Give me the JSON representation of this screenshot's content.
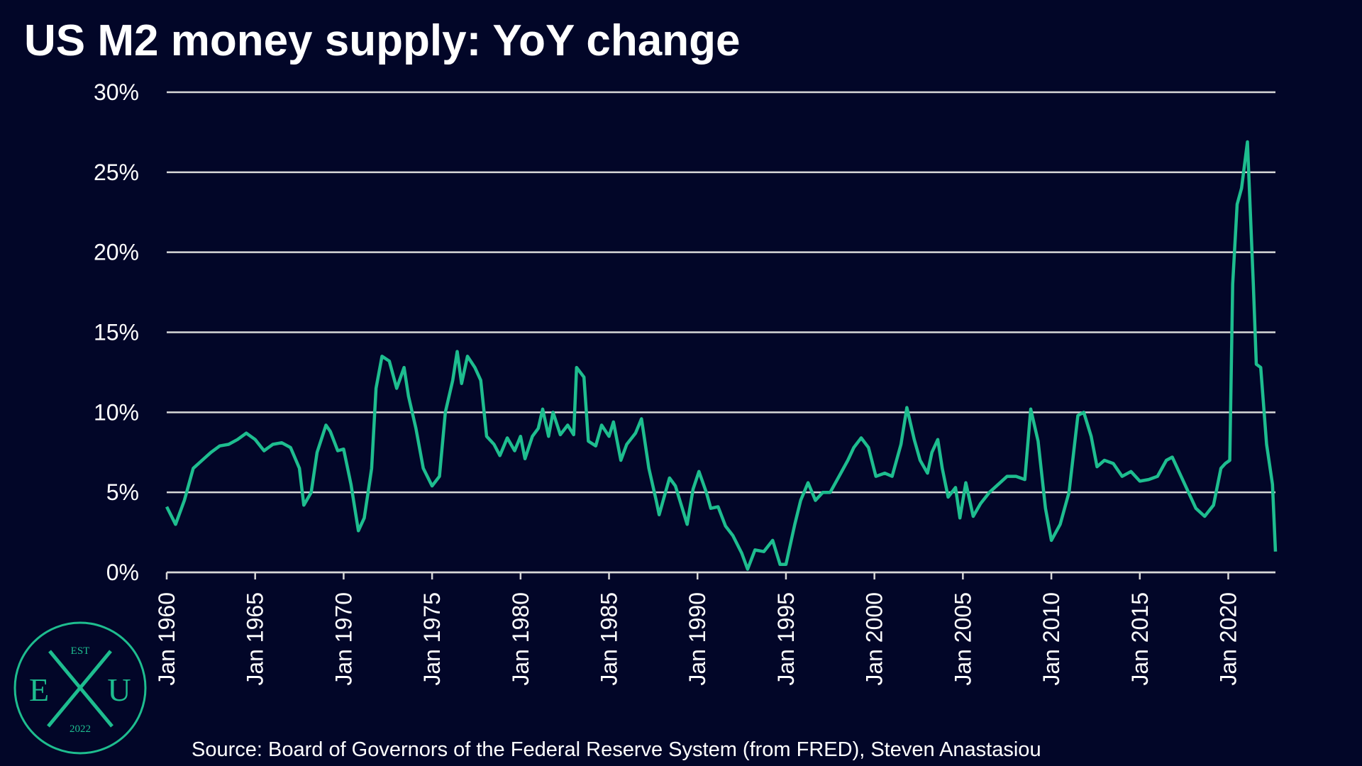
{
  "chart_data": {
    "type": "line",
    "title": "US M2 money supply: YoY change",
    "source": "Source: Board of Governors of the Federal Reserve System (from FRED), Steven Anastasiou",
    "logo": {
      "top": "EST",
      "left": "E",
      "right": "U",
      "bottom": "2022"
    },
    "x": [
      "1960-01",
      "1960-07",
      "1961-01",
      "1961-07",
      "1962-01",
      "1962-07",
      "1963-01",
      "1963-07",
      "1964-01",
      "1964-07",
      "1965-01",
      "1965-07",
      "1966-01",
      "1966-07",
      "1967-01",
      "1967-07",
      "1967-10",
      "1968-03",
      "1968-07",
      "1969-01",
      "1969-04",
      "1969-09",
      "1970-01",
      "1970-06",
      "1970-11",
      "1971-03",
      "1971-08",
      "1971-11",
      "1972-03",
      "1972-08",
      "1973-01",
      "1973-06",
      "1973-09",
      "1974-02",
      "1974-07",
      "1975-01",
      "1975-06",
      "1975-10",
      "1976-03",
      "1976-06",
      "1976-09",
      "1977-01",
      "1977-06",
      "1977-10",
      "1978-02",
      "1978-07",
      "1978-11",
      "1979-04",
      "1979-09",
      "1980-01",
      "1980-04",
      "1980-09",
      "1981-01",
      "1981-04",
      "1981-08",
      "1981-11",
      "1982-04",
      "1982-09",
      "1983-01",
      "1983-03",
      "1983-08",
      "1983-11",
      "1984-04",
      "1984-08",
      "1985-01",
      "1985-04",
      "1985-09",
      "1986-01",
      "1986-07",
      "1986-11",
      "1987-04",
      "1987-09",
      "1987-11",
      "1988-06",
      "1988-10",
      "1989-02",
      "1989-06",
      "1989-10",
      "1990-02",
      "1990-07",
      "1990-10",
      "1991-03",
      "1991-08",
      "1992-01",
      "1992-07",
      "1992-11",
      "1993-04",
      "1993-10",
      "1994-04",
      "1994-09",
      "1995-01",
      "1995-07",
      "1995-11",
      "1996-04",
      "1996-09",
      "1997-02",
      "1997-07",
      "1998-01",
      "1998-07",
      "1998-11",
      "1999-04",
      "1999-09",
      "2000-02",
      "2000-08",
      "2001-01",
      "2001-07",
      "2001-11",
      "2002-04",
      "2002-08",
      "2003-01",
      "2003-04",
      "2003-08",
      "2003-11",
      "2004-03",
      "2004-08",
      "2004-11",
      "2005-03",
      "2005-08",
      "2006-01",
      "2006-07",
      "2007-01",
      "2007-07",
      "2008-01",
      "2008-07",
      "2008-11",
      "2009-04",
      "2009-09",
      "2010-01",
      "2010-07",
      "2011-01",
      "2011-07",
      "2011-11",
      "2012-04",
      "2012-08",
      "2013-01",
      "2013-07",
      "2014-01",
      "2014-07",
      "2015-01",
      "2015-07",
      "2016-01",
      "2016-07",
      "2016-11",
      "2017-04",
      "2017-10",
      "2018-03",
      "2018-09",
      "2019-03",
      "2019-08",
      "2019-11",
      "2020-02",
      "2020-04",
      "2020-07",
      "2020-10",
      "2021-02",
      "2021-06",
      "2021-08",
      "2021-11",
      "2022-03",
      "2022-07",
      "2022-09"
    ],
    "series": [
      {
        "name": "M2 YoY",
        "color": "#1ebd8f",
        "values": [
          4.1,
          3.0,
          4.5,
          6.5,
          7.0,
          7.5,
          7.9,
          8.0,
          8.3,
          8.7,
          8.3,
          7.6,
          8.0,
          8.1,
          7.8,
          6.5,
          4.2,
          5.0,
          7.5,
          9.2,
          8.8,
          7.6,
          7.7,
          5.5,
          2.6,
          3.4,
          6.5,
          11.5,
          13.5,
          13.2,
          11.5,
          12.8,
          11.0,
          9.0,
          6.5,
          5.4,
          6.0,
          10.0,
          12.0,
          13.8,
          11.8,
          13.5,
          12.8,
          12.0,
          8.5,
          8.0,
          7.3,
          8.4,
          7.6,
          8.5,
          7.1,
          8.5,
          9.0,
          10.2,
          8.5,
          10.0,
          8.6,
          9.2,
          8.6,
          12.8,
          12.2,
          8.2,
          7.9,
          9.2,
          8.5,
          9.4,
          7.0,
          8.0,
          8.7,
          9.6,
          6.5,
          4.5,
          3.6,
          5.9,
          5.4,
          4.2,
          3.0,
          5.2,
          6.3,
          5.0,
          4.0,
          4.1,
          2.9,
          2.3,
          1.2,
          0.2,
          1.4,
          1.3,
          2.0,
          0.5,
          0.5,
          3.0,
          4.5,
          5.6,
          4.5,
          5.0,
          5.0,
          6.0,
          7.0,
          7.8,
          8.4,
          7.8,
          6.0,
          6.2,
          6.0,
          8.0,
          10.3,
          8.3,
          7.0,
          6.2,
          7.5,
          8.3,
          6.5,
          4.7,
          5.3,
          3.4,
          5.6,
          3.5,
          4.3,
          5.0,
          5.5,
          6.0,
          6.0,
          5.8,
          10.2,
          8.2,
          4.0,
          2.0,
          3.0,
          5.0,
          9.8,
          10.0,
          8.5,
          6.6,
          7.0,
          6.8,
          6.0,
          6.3,
          5.7,
          5.8,
          6.0,
          7.0,
          7.2,
          6.2,
          5.0,
          4.0,
          3.5,
          4.2,
          6.5,
          6.8,
          7.0,
          18.0,
          23.0,
          24.0,
          26.9,
          18.0,
          13.0,
          12.8,
          8.0,
          5.5,
          1.3
        ]
      }
    ],
    "xlim": [
      "1960-01",
      "2022-09"
    ],
    "xticks": [
      {
        "value": "1960-01",
        "label": "Jan 1960"
      },
      {
        "value": "1965-01",
        "label": "Jan 1965"
      },
      {
        "value": "1970-01",
        "label": "Jan 1970"
      },
      {
        "value": "1975-01",
        "label": "Jan 1975"
      },
      {
        "value": "1980-01",
        "label": "Jan 1980"
      },
      {
        "value": "1985-01",
        "label": "Jan 1985"
      },
      {
        "value": "1990-01",
        "label": "Jan 1990"
      },
      {
        "value": "1995-01",
        "label": "Jan 1995"
      },
      {
        "value": "2000-01",
        "label": "Jan 2000"
      },
      {
        "value": "2005-01",
        "label": "Jan 2005"
      },
      {
        "value": "2010-01",
        "label": "Jan 2010"
      },
      {
        "value": "2015-01",
        "label": "Jan 2015"
      },
      {
        "value": "2020-01",
        "label": "Jan 2020"
      }
    ],
    "ylim": [
      0,
      30
    ],
    "yticks": [
      {
        "value": 0,
        "label": "0%"
      },
      {
        "value": 5,
        "label": "5%"
      },
      {
        "value": 10,
        "label": "10%"
      },
      {
        "value": 15,
        "label": "15%"
      },
      {
        "value": 20,
        "label": "20%"
      },
      {
        "value": 25,
        "label": "25%"
      },
      {
        "value": 30,
        "label": "30%"
      }
    ],
    "grid": true
  }
}
